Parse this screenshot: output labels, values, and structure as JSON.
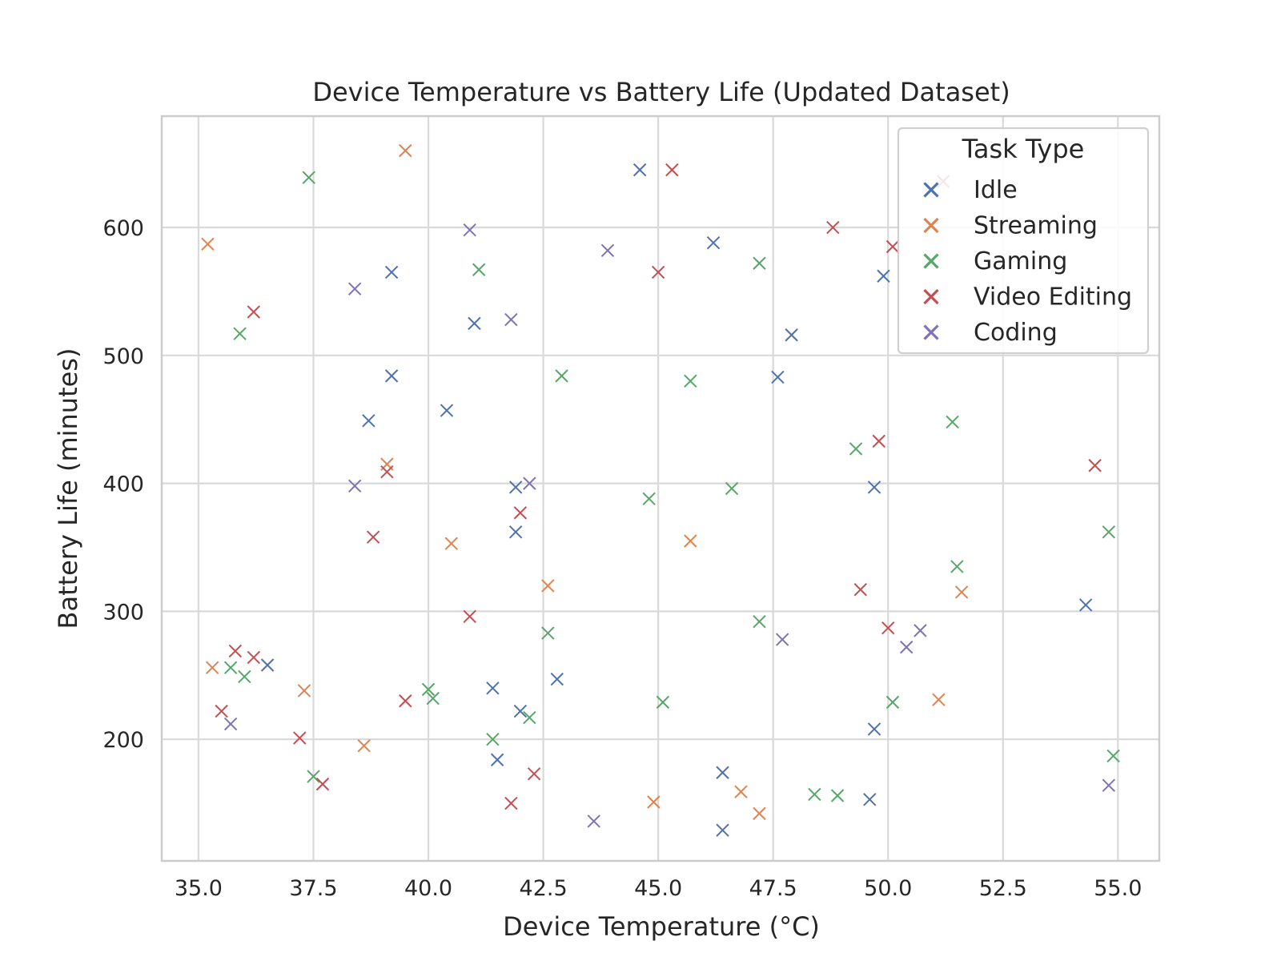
{
  "chart_data": {
    "type": "scatter",
    "title": "Device Temperature vs Battery Life (Updated Dataset)",
    "xlabel": "Device Temperature (°C)",
    "ylabel": "Battery Life (minutes)",
    "xlim": [
      34.2,
      55.9
    ],
    "ylim": [
      105,
      687
    ],
    "xticks": [
      "35.0",
      "37.5",
      "40.0",
      "42.5",
      "45.0",
      "47.5",
      "50.0",
      "52.5",
      "55.0"
    ],
    "yticks": [
      "200",
      "300",
      "400",
      "500",
      "600"
    ],
    "grid": true,
    "marker": "x",
    "legend": {
      "title": "Task Type",
      "position": "top-right"
    },
    "series": [
      {
        "name": "Idle",
        "color": "#4c72b0",
        "points": [
          [
            44.6,
            645
          ],
          [
            46.2,
            588
          ],
          [
            49.9,
            562
          ],
          [
            39.2,
            565
          ],
          [
            41.0,
            525
          ],
          [
            47.9,
            516
          ],
          [
            39.2,
            484
          ],
          [
            47.6,
            483
          ],
          [
            38.7,
            449
          ],
          [
            40.4,
            457
          ],
          [
            41.9,
            397
          ],
          [
            49.7,
            397
          ],
          [
            41.9,
            362
          ],
          [
            54.3,
            305
          ],
          [
            36.5,
            258
          ],
          [
            41.4,
            240
          ],
          [
            42.8,
            247
          ],
          [
            42.0,
            222
          ],
          [
            49.7,
            208
          ],
          [
            41.5,
            184
          ],
          [
            46.4,
            174
          ],
          [
            49.6,
            153
          ],
          [
            46.4,
            129
          ]
        ]
      },
      {
        "name": "Streaming",
        "color": "#dd8452",
        "points": [
          [
            39.5,
            660
          ],
          [
            35.2,
            587
          ],
          [
            39.1,
            415
          ],
          [
            40.5,
            353
          ],
          [
            45.7,
            355
          ],
          [
            42.6,
            320
          ],
          [
            51.6,
            315
          ],
          [
            35.3,
            256
          ],
          [
            37.3,
            238
          ],
          [
            51.1,
            231
          ],
          [
            38.6,
            195
          ],
          [
            46.8,
            159
          ],
          [
            44.9,
            151
          ],
          [
            47.2,
            142
          ]
        ]
      },
      {
        "name": "Gaming",
        "color": "#55a868",
        "points": [
          [
            37.4,
            639
          ],
          [
            41.1,
            567
          ],
          [
            47.2,
            572
          ],
          [
            35.9,
            517
          ],
          [
            42.9,
            484
          ],
          [
            45.7,
            480
          ],
          [
            51.4,
            448
          ],
          [
            49.3,
            427
          ],
          [
            46.6,
            396
          ],
          [
            44.8,
            388
          ],
          [
            54.8,
            362
          ],
          [
            51.5,
            335
          ],
          [
            42.6,
            283
          ],
          [
            47.2,
            292
          ],
          [
            35.7,
            256
          ],
          [
            36.0,
            249
          ],
          [
            40.0,
            239
          ],
          [
            40.1,
            232
          ],
          [
            45.1,
            229
          ],
          [
            50.1,
            229
          ],
          [
            42.2,
            217
          ],
          [
            41.4,
            200
          ],
          [
            54.9,
            187
          ],
          [
            37.5,
            171
          ],
          [
            48.4,
            157
          ],
          [
            48.9,
            156
          ]
        ]
      },
      {
        "name": "Video Editing",
        "color": "#c44e52",
        "points": [
          [
            45.3,
            645
          ],
          [
            51.2,
            636
          ],
          [
            48.8,
            600
          ],
          [
            50.1,
            585
          ],
          [
            45.0,
            565
          ],
          [
            36.2,
            534
          ],
          [
            49.8,
            433
          ],
          [
            54.5,
            414
          ],
          [
            39.1,
            409
          ],
          [
            42.0,
            377
          ],
          [
            38.8,
            358
          ],
          [
            49.4,
            317
          ],
          [
            40.9,
            296
          ],
          [
            50.0,
            287
          ],
          [
            35.8,
            269
          ],
          [
            36.2,
            264
          ],
          [
            39.5,
            230
          ],
          [
            35.5,
            222
          ],
          [
            37.2,
            201
          ],
          [
            42.3,
            173
          ],
          [
            37.7,
            165
          ],
          [
            41.8,
            150
          ]
        ]
      },
      {
        "name": "Coding",
        "color": "#8172b3",
        "points": [
          [
            40.9,
            598
          ],
          [
            43.9,
            582
          ],
          [
            38.4,
            552
          ],
          [
            41.8,
            528
          ],
          [
            42.2,
            400
          ],
          [
            38.4,
            398
          ],
          [
            50.7,
            285
          ],
          [
            47.7,
            278
          ],
          [
            50.4,
            272
          ],
          [
            35.7,
            212
          ],
          [
            54.8,
            164
          ],
          [
            43.6,
            136
          ]
        ]
      }
    ]
  }
}
